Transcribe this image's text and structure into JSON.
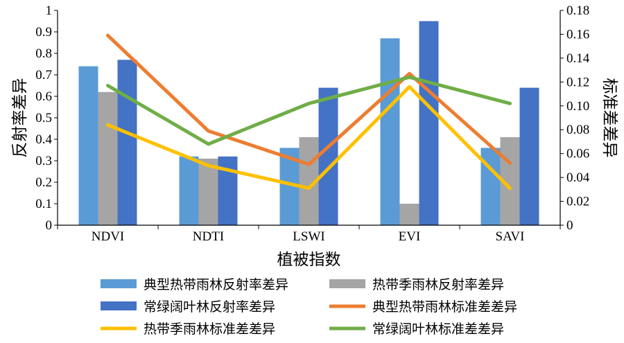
{
  "chart_data": {
    "type": "bar",
    "categories": [
      "NDVI",
      "NDTI",
      "LSWI",
      "EVI",
      "SAVI"
    ],
    "xlabel": "植被指数",
    "ylabel": "反射率差异",
    "y2label": "标准差差异",
    "ylim": [
      0,
      1
    ],
    "y2lim": [
      0,
      0.18
    ],
    "yticks": [
      "0",
      "0.1",
      "0.2",
      "0.3",
      "0.4",
      "0.5",
      "0.6",
      "0.7",
      "0.8",
      "0.9",
      "1"
    ],
    "y2ticks": [
      "0",
      "0.02",
      "0.04",
      "0.06",
      "0.08",
      "0.10",
      "0.12",
      "0.14",
      "0.16",
      "0.18"
    ],
    "bar_series": [
      {
        "name": "典型热带雨林反射率差异",
        "color": "#5B9BD5",
        "values": [
          0.74,
          0.32,
          0.36,
          0.87,
          0.36
        ]
      },
      {
        "name": "热带季雨林反射率差异",
        "color": "#A5A5A5",
        "values": [
          0.62,
          0.31,
          0.41,
          0.1,
          0.41
        ]
      },
      {
        "name": "常绿阔叶林反射率差异",
        "color": "#4472C4",
        "values": [
          0.77,
          0.32,
          0.64,
          0.95,
          0.64
        ]
      }
    ],
    "line_series": [
      {
        "name": "典型热带雨林标准差差异",
        "color": "#ED7D31",
        "values": [
          0.159,
          0.079,
          0.051,
          0.127,
          0.052
        ]
      },
      {
        "name": "热带季雨林标准差差异",
        "color": "#FFC000",
        "values": [
          0.084,
          0.05,
          0.031,
          0.116,
          0.031
        ]
      },
      {
        "name": "常绿阔叶林标准差差异",
        "color": "#70AD47",
        "values": [
          0.117,
          0.068,
          0.102,
          0.124,
          0.102
        ]
      }
    ],
    "grid": false,
    "legend_position": "bottom"
  }
}
